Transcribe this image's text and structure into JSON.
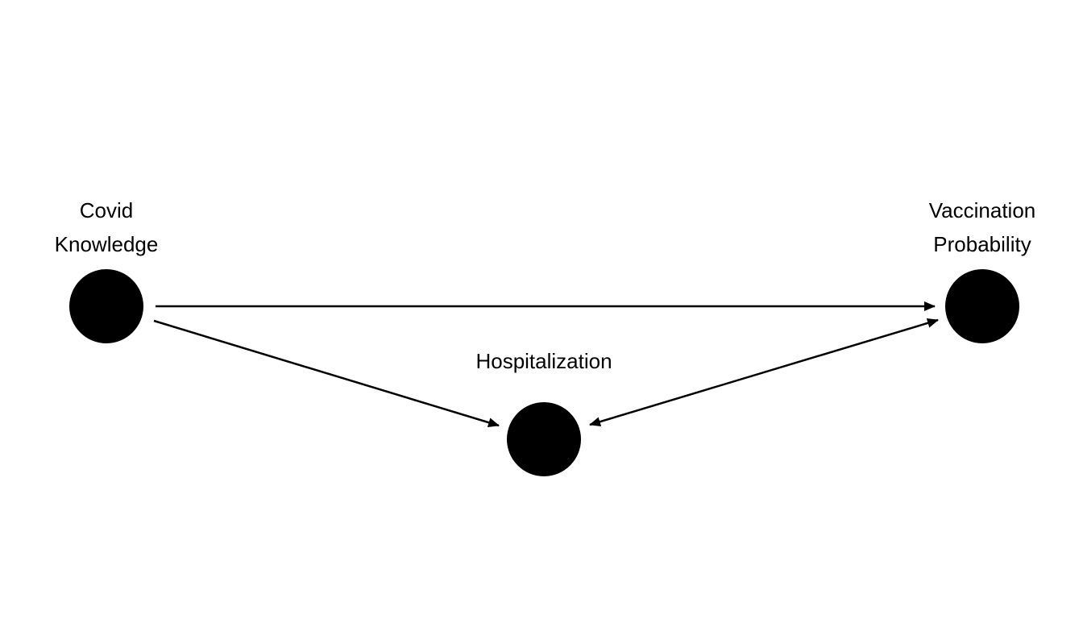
{
  "diagram": {
    "nodes": {
      "covid_knowledge": {
        "label_line1": "Covid",
        "label_line2": "Knowledge"
      },
      "vaccination_probability": {
        "label_line1": "Vaccination",
        "label_line2": "Probability"
      },
      "hospitalization": {
        "label": "Hospitalization"
      }
    },
    "edges": [
      {
        "from": "Covid Knowledge",
        "to": "Vaccination Probability",
        "direction": "forward"
      },
      {
        "from": "Covid Knowledge",
        "to": "Hospitalization",
        "direction": "forward"
      },
      {
        "from": "Hospitalization",
        "to": "Vaccination Probability",
        "direction": "both"
      }
    ],
    "colors": {
      "node_fill": "#000000",
      "edge_stroke": "#000000",
      "background": "#ffffff"
    }
  }
}
